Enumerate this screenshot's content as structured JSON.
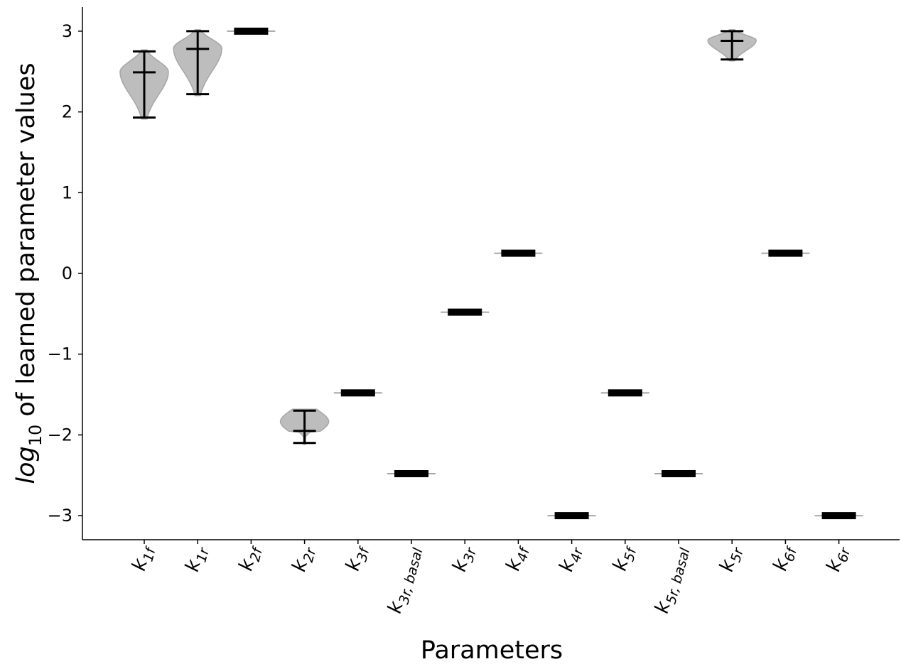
{
  "chart_data": {
    "type": "violin",
    "xlabel": "Parameters",
    "ylabel": {
      "prefix": "log",
      "subscript": "10",
      "rest": " of learned parameter values"
    },
    "ylim": [
      -3.3,
      3.3
    ],
    "yticks": [
      -3,
      -2,
      -1,
      0,
      1,
      2,
      3
    ],
    "ytick_labels": [
      "−3",
      "−2",
      "−1",
      "0",
      "1",
      "2",
      "3"
    ],
    "categories": [
      {
        "base": "k",
        "sub": "1f"
      },
      {
        "base": "k",
        "sub": "1r"
      },
      {
        "base": "k",
        "sub": "2f"
      },
      {
        "base": "k",
        "sub": "2r"
      },
      {
        "base": "k",
        "sub": "3f"
      },
      {
        "base": "k",
        "sub": "3r, basal"
      },
      {
        "base": "k",
        "sub": "3r"
      },
      {
        "base": "k",
        "sub": "4f"
      },
      {
        "base": "k",
        "sub": "4r"
      },
      {
        "base": "k",
        "sub": "5f"
      },
      {
        "base": "k",
        "sub": "5r, basal"
      },
      {
        "base": "k",
        "sub": "5r"
      },
      {
        "base": "k",
        "sub": "6f"
      },
      {
        "base": "k",
        "sub": "6r"
      }
    ],
    "violins": [
      {
        "min": 1.93,
        "max": 2.75,
        "median": 2.49,
        "spread": "wide"
      },
      {
        "min": 2.22,
        "max": 3.0,
        "median": 2.78,
        "spread": "wide"
      },
      {
        "min": 3.0,
        "max": 3.0,
        "median": 3.0,
        "spread": "point"
      },
      {
        "min": -2.1,
        "max": -1.7,
        "median": -1.95,
        "spread": "wide"
      },
      {
        "min": -1.48,
        "max": -1.48,
        "median": -1.48,
        "spread": "point"
      },
      {
        "min": -2.48,
        "max": -2.48,
        "median": -2.48,
        "spread": "point"
      },
      {
        "min": -0.48,
        "max": -0.48,
        "median": -0.48,
        "spread": "point"
      },
      {
        "min": 0.25,
        "max": 0.25,
        "median": 0.25,
        "spread": "point"
      },
      {
        "min": -3.0,
        "max": -3.0,
        "median": -3.0,
        "spread": "point"
      },
      {
        "min": -1.48,
        "max": -1.48,
        "median": -1.48,
        "spread": "point"
      },
      {
        "min": -2.48,
        "max": -2.48,
        "median": -2.48,
        "spread": "point"
      },
      {
        "min": 2.65,
        "max": 3.0,
        "median": 2.88,
        "spread": "wide"
      },
      {
        "min": 0.25,
        "max": 0.25,
        "median": 0.25,
        "spread": "point"
      },
      {
        "min": -3.0,
        "max": -3.0,
        "median": -3.0,
        "spread": "point"
      }
    ],
    "grid": false,
    "colors": {
      "violin_fill": "#bdbdbd",
      "violin_edge": "#a6a6a6",
      "whisker": "#000000"
    }
  }
}
